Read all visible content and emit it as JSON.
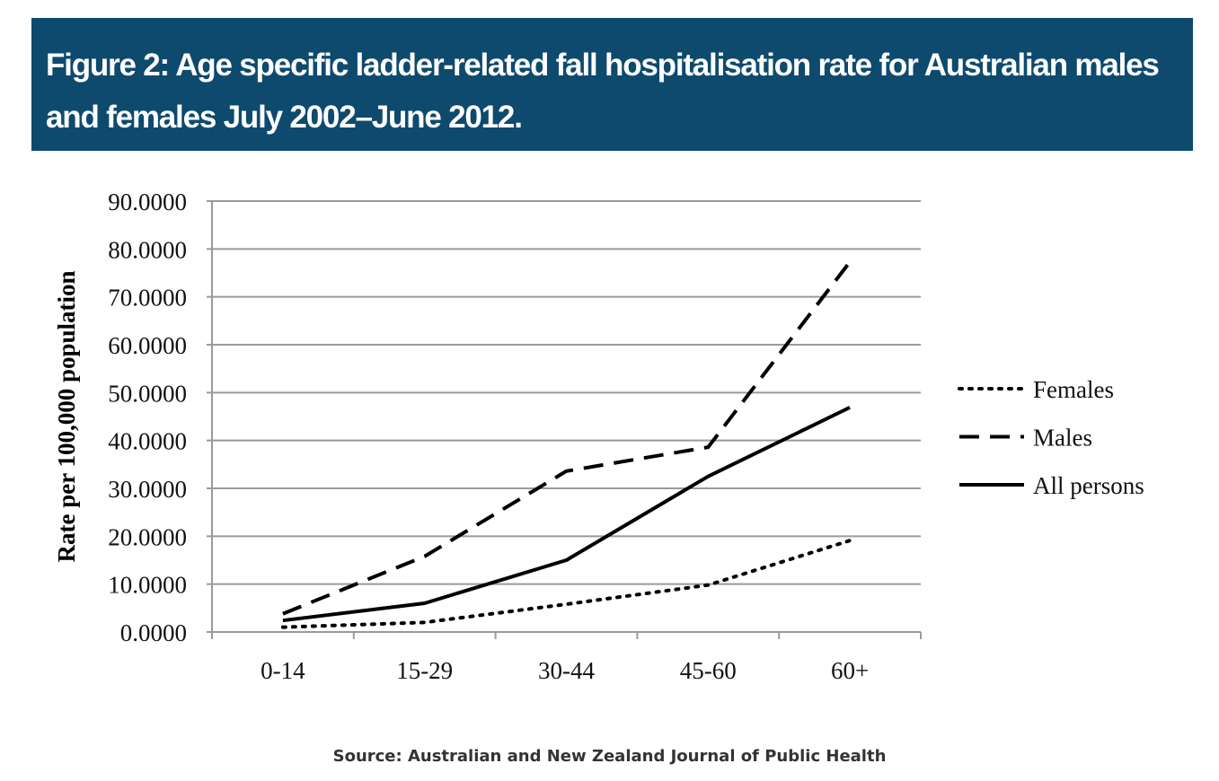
{
  "banner": {
    "title": "Figure 2: Age specific ladder-related fall hospitalisation rate for Australian males and females July 2002–June 2012."
  },
  "source": "Source: Australian and New Zealand Journal of Public Health",
  "chart_data": {
    "type": "line",
    "title": "Figure 2: Age specific ladder-related fall hospitalisation rate for Australian males and females July 2002–June 2012.",
    "xlabel": "",
    "ylabel": "Rate per 100,000 population",
    "categories": [
      "0-14",
      "15-29",
      "30-44",
      "45-60",
      "60+"
    ],
    "ylim": [
      0,
      90
    ],
    "yticks": [
      "0.0000",
      "10.0000",
      "20.0000",
      "30.0000",
      "40.0000",
      "50.0000",
      "60.0000",
      "70.0000",
      "80.0000",
      "90.0000"
    ],
    "grid": true,
    "legend_position": "right",
    "series": [
      {
        "name": "Females",
        "style": "dotted",
        "values": [
          1.0,
          2.0,
          5.8,
          9.8,
          19.1
        ]
      },
      {
        "name": "Males",
        "style": "dashed",
        "values": [
          3.8,
          15.8,
          33.6,
          38.6,
          77.3
        ]
      },
      {
        "name": "All persons",
        "style": "solid",
        "values": [
          2.4,
          6.0,
          15.0,
          32.5,
          46.9
        ]
      }
    ],
    "colors": {
      "line": "#000000",
      "grid": "#999999",
      "banner": "#0e4a6e"
    }
  }
}
